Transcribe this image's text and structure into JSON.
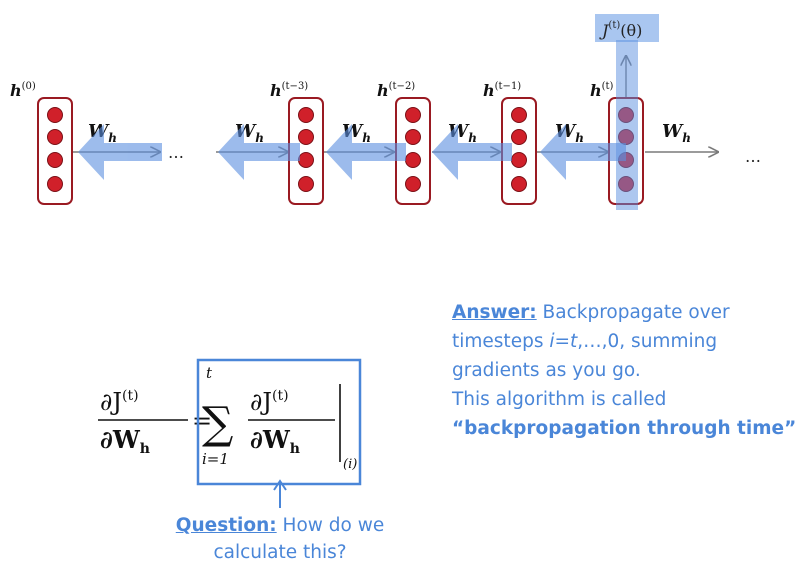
{
  "diagram": {
    "hidden_states": [
      {
        "base": "h",
        "sup": "(0)"
      },
      {
        "base": "h",
        "sup": "(t−3)"
      },
      {
        "base": "h",
        "sup": "(t−2)"
      },
      {
        "base": "h",
        "sup": "(t−1)"
      },
      {
        "base": "h",
        "sup": "(t)"
      }
    ],
    "weight_base": "W",
    "weight_sub": "h",
    "ellipsis": "…",
    "loss": {
      "base": "J",
      "sup": "(t)",
      "arg": "(θ)"
    },
    "colors": {
      "node_fill": "#d0202a",
      "node_border": "#9a1a22",
      "highlight": "#6f9fe6",
      "arrow": "#7a7a7a",
      "accent": "#4a86d8"
    }
  },
  "equation": {
    "num": "∂J",
    "num_sup": "(t)",
    "den": "∂W",
    "den_sub": "h",
    "equals": "=",
    "sum": "∑",
    "sum_upper": "t",
    "sum_lower": "i=1",
    "eval_sub": "(i)"
  },
  "answer": {
    "label": "Answer:",
    "text1": " Backpropagate over",
    "text2a": "timesteps ",
    "text2i": "i",
    "text2b": "=",
    "text2t": "t",
    "text2c": ",…,0, summing",
    "text3": "gradients as you go.",
    "text4": "This algorithm is called",
    "text5": "“backpropagation through time”"
  },
  "question": {
    "label": "Question:",
    "text1": " How do we",
    "text2": "calculate this?"
  }
}
